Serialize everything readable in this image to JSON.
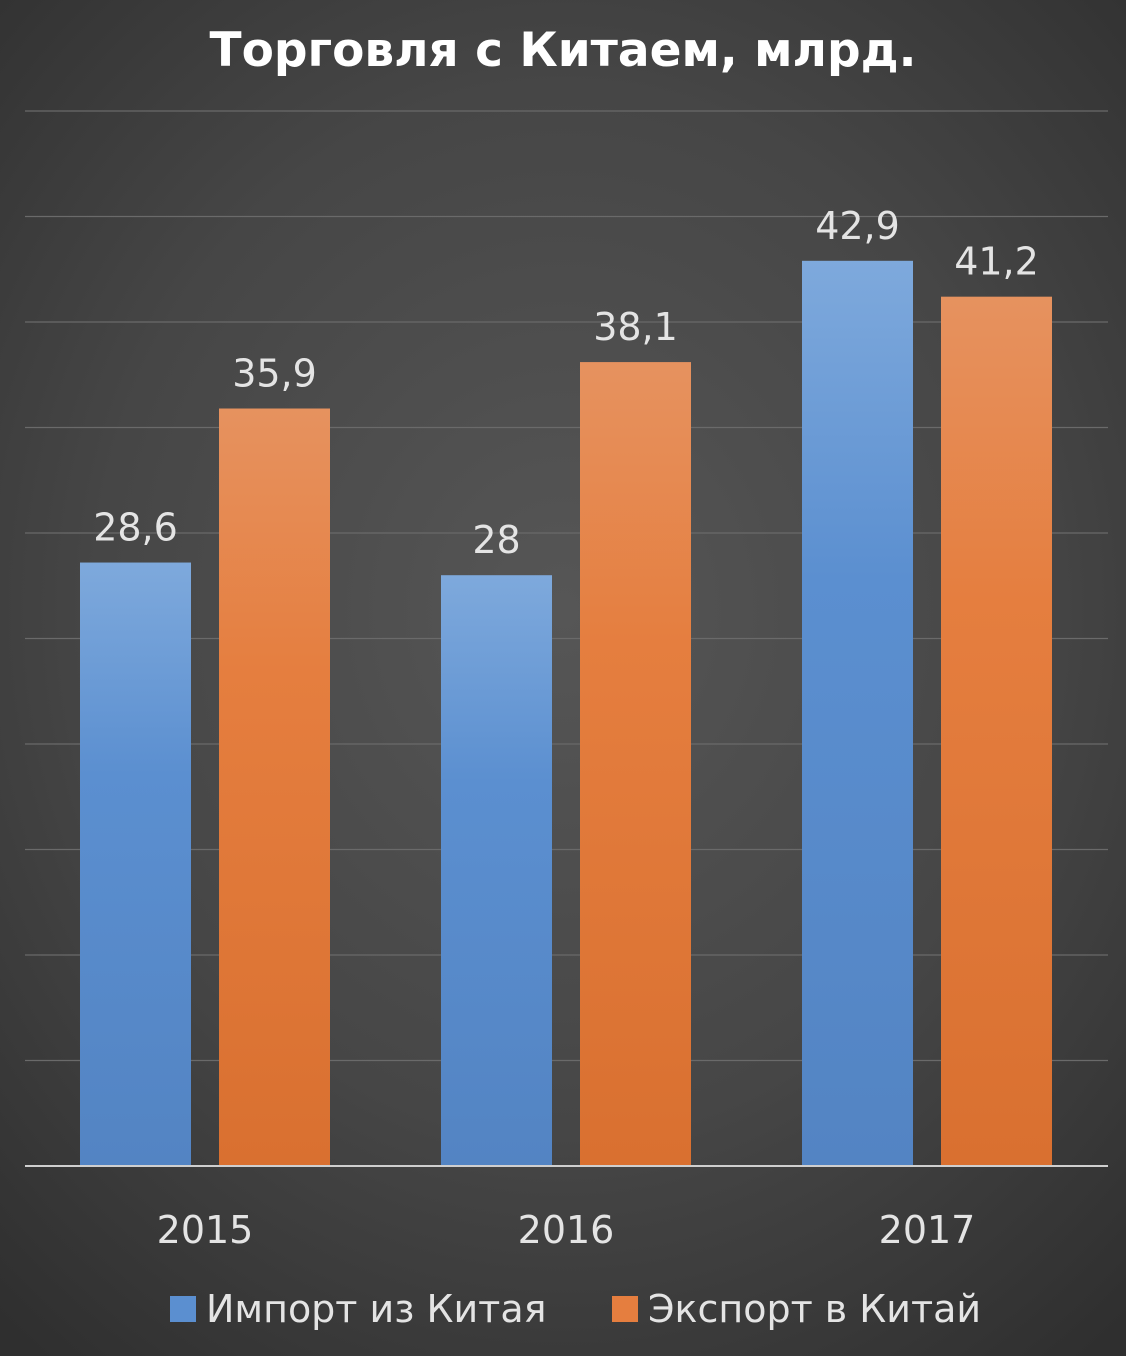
{
  "chart_data": {
    "type": "bar",
    "title": "Торговля с Китаем, млрд.",
    "categories": [
      "2015",
      "2016",
      "2017"
    ],
    "series": [
      {
        "name": "Импорт из Китая",
        "values": [
          28.6,
          28,
          42.9
        ],
        "value_labels": [
          "28,6",
          "28",
          "42,9"
        ],
        "color": "#5b8fd0",
        "color_light": "#7ea9dc",
        "color_dark": "#5384c3"
      },
      {
        "name": "Экспорт в Китай",
        "values": [
          35.9,
          38.1,
          41.2
        ],
        "value_labels": [
          "35,9",
          "38,1",
          "41,2"
        ],
        "color": "#e57e3f",
        "color_light": "#e6925f",
        "color_dark": "#d97030"
      }
    ],
    "ylim": [
      0,
      50
    ],
    "grid": true,
    "legend_position": "bottom",
    "xlabel": "",
    "ylabel": ""
  }
}
